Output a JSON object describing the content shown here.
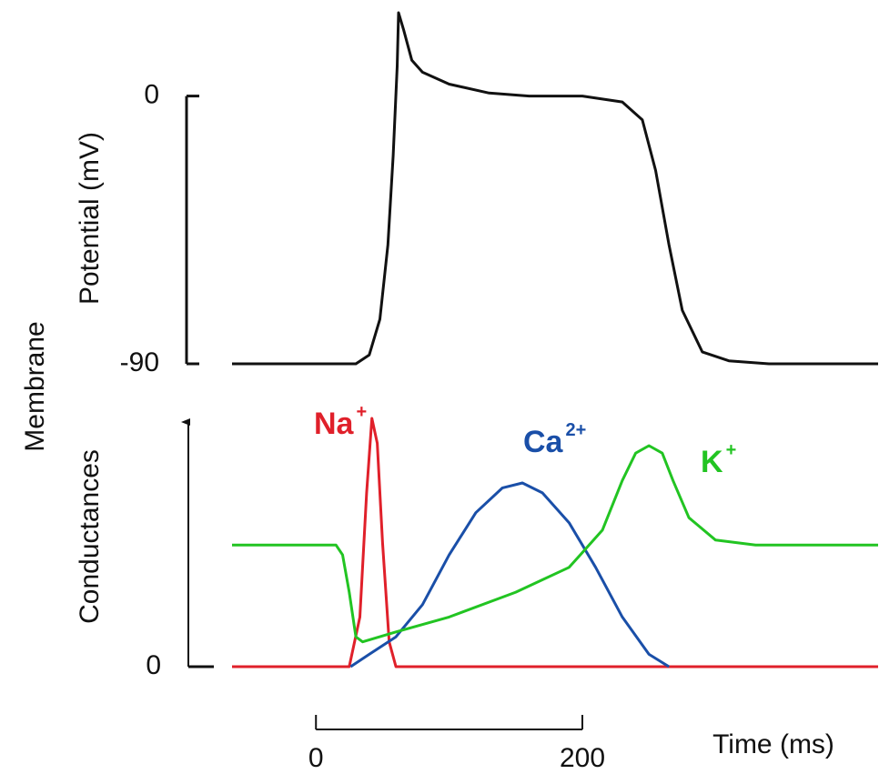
{
  "chart_data": [
    {
      "type": "line",
      "ylabel_group": "Membrane",
      "ylabel": "Potential (mV)",
      "ylim": [
        -90,
        28
      ],
      "yticks": [
        -90,
        0
      ],
      "xlim": [
        -63,
        422
      ],
      "series": [
        {
          "name": "Membrane potential",
          "color": "#111111",
          "x": [
            -63,
            30,
            40,
            48,
            54,
            58,
            61,
            62,
            66,
            72,
            80,
            100,
            130,
            160,
            200,
            230,
            245,
            255,
            265,
            275,
            290,
            310,
            340,
            422
          ],
          "values": [
            -90,
            -90,
            -87,
            -75,
            -50,
            -20,
            10,
            28,
            22,
            12,
            8,
            4,
            1,
            0,
            0,
            -2,
            -8,
            -25,
            -50,
            -72,
            -86,
            -89,
            -90,
            -90
          ]
        }
      ]
    },
    {
      "type": "line",
      "ylabel": "Conductances",
      "ylim": [
        0,
        100
      ],
      "yticks": [
        0
      ],
      "xlim": [
        -63,
        422
      ],
      "xticks": [
        0,
        200
      ],
      "xlabel": "Time (ms)",
      "series": [
        {
          "name": "Na",
          "charge": "+",
          "color": "#e0202a",
          "x": [
            -63,
            25,
            33,
            38,
            42,
            46,
            50,
            55,
            60,
            422
          ],
          "values": [
            0,
            0,
            20,
            70,
            100,
            90,
            50,
            10,
            0,
            0
          ]
        },
        {
          "name": "Ca",
          "charge": "2+",
          "color": "#1a4fa8",
          "x": [
            26,
            40,
            60,
            80,
            100,
            120,
            140,
            155,
            170,
            190,
            210,
            230,
            250,
            265
          ],
          "values": [
            0,
            5,
            12,
            25,
            45,
            62,
            72,
            74,
            70,
            58,
            40,
            20,
            5,
            0
          ]
        },
        {
          "name": "K",
          "charge": "+",
          "color": "#22c422",
          "x": [
            -63,
            15,
            20,
            25,
            30,
            35,
            60,
            100,
            150,
            190,
            215,
            230,
            240,
            250,
            260,
            268,
            280,
            300,
            330,
            422
          ],
          "values": [
            49,
            49,
            45,
            30,
            12,
            10,
            14,
            20,
            30,
            40,
            55,
            75,
            86,
            89,
            86,
            75,
            60,
            51,
            49,
            49
          ]
        }
      ]
    }
  ]
}
